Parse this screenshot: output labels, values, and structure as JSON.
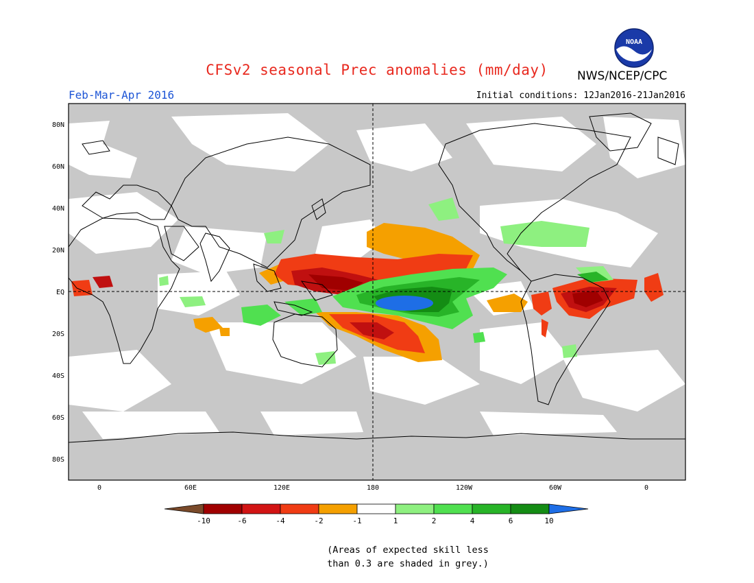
{
  "header": {
    "title": "CFSv2 seasonal Prec anomalies (mm/day)",
    "organization": "NWS/NCEP/CPC",
    "logo_text": "NOAA",
    "season": "Feb-Mar-Apr 2016",
    "initial_conditions": "Initial conditions: 12Jan2016-21Jan2016"
  },
  "map": {
    "longitude_ticks": [
      "0",
      "60E",
      "120E",
      "180",
      "120W",
      "60W",
      "0"
    ],
    "latitude_ticks": [
      "80N",
      "60N",
      "40N",
      "20N",
      "EQ",
      "20S",
      "40S",
      "60S",
      "80S"
    ],
    "grey_fill": "#c8c8c8"
  },
  "colorbar": {
    "labels": [
      "-10",
      "-6",
      "-4",
      "-2",
      "-1",
      "1",
      "2",
      "4",
      "6",
      "10"
    ],
    "colors": [
      "#7a4a2a",
      "#a00000",
      "#d21414",
      "#f03c14",
      "#f5a000",
      "#ffffff",
      "#8ef080",
      "#50e050",
      "#28b428",
      "#148c14",
      "#1e6ee6"
    ]
  },
  "footnote": {
    "line1": "(Areas of expected skill less",
    "line2": "than 0.3 are shaded in grey.)"
  }
}
